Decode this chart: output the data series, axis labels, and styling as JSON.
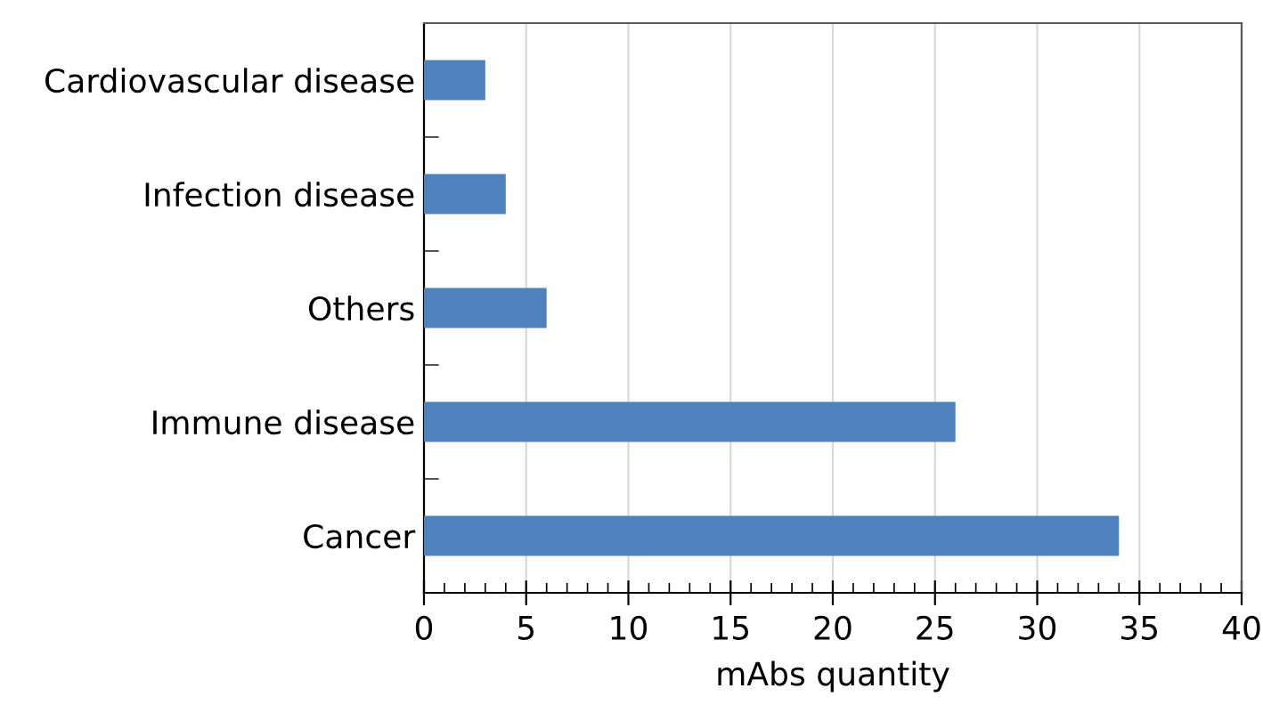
{
  "chart_data": {
    "type": "bar",
    "orientation": "horizontal",
    "xlabel": "mAbs quantity",
    "categories": [
      "Cardiovascular disease",
      "Infection disease",
      "Others",
      "Immune disease",
      "Cancer"
    ],
    "values": [
      3,
      4,
      6,
      26,
      34
    ],
    "color": "#4f81bd",
    "xlim": [
      0,
      40
    ],
    "xticks": [
      0,
      5,
      10,
      15,
      20,
      25,
      30,
      35,
      40
    ],
    "grid": "x"
  }
}
